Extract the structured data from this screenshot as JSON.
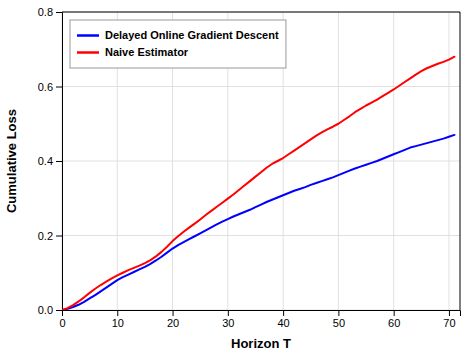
{
  "chart_data": {
    "type": "line",
    "xlabel": "Horizon T",
    "ylabel": "Cumulative Loss",
    "x": [
      0,
      1,
      2,
      3,
      4,
      5,
      6,
      7,
      8,
      9,
      10,
      11,
      12,
      13,
      14,
      15,
      16,
      17,
      18,
      19,
      20,
      21,
      22,
      23,
      24,
      25,
      26,
      27,
      28,
      29,
      30,
      31,
      32,
      33,
      34,
      35,
      36,
      37,
      38,
      39,
      40,
      41,
      42,
      43,
      44,
      45,
      46,
      47,
      48,
      49,
      50,
      51,
      52,
      53,
      54,
      55,
      56,
      57,
      58,
      59,
      60,
      61,
      62,
      63,
      64,
      65,
      66,
      67,
      68,
      69,
      70,
      71
    ],
    "series": [
      {
        "name": "Delayed Online Gradient Descent",
        "color": "#0000FF",
        "values": [
          0.0,
          0.003,
          0.008,
          0.014,
          0.022,
          0.031,
          0.04,
          0.05,
          0.06,
          0.07,
          0.08,
          0.088,
          0.095,
          0.102,
          0.109,
          0.116,
          0.124,
          0.133,
          0.143,
          0.154,
          0.165,
          0.174,
          0.182,
          0.19,
          0.198,
          0.206,
          0.214,
          0.222,
          0.23,
          0.237,
          0.244,
          0.251,
          0.257,
          0.263,
          0.269,
          0.276,
          0.283,
          0.29,
          0.296,
          0.302,
          0.308,
          0.314,
          0.32,
          0.325,
          0.33,
          0.336,
          0.341,
          0.346,
          0.351,
          0.356,
          0.362,
          0.368,
          0.374,
          0.38,
          0.385,
          0.39,
          0.395,
          0.4,
          0.406,
          0.412,
          0.418,
          0.424,
          0.43,
          0.436,
          0.44,
          0.444,
          0.448,
          0.452,
          0.456,
          0.46,
          0.465,
          0.47
        ]
      },
      {
        "name": "Naive Estimator",
        "color": "#FF0000",
        "values": [
          0.0,
          0.005,
          0.013,
          0.023,
          0.034,
          0.046,
          0.057,
          0.067,
          0.076,
          0.085,
          0.093,
          0.1,
          0.107,
          0.113,
          0.119,
          0.126,
          0.134,
          0.144,
          0.156,
          0.17,
          0.185,
          0.198,
          0.21,
          0.221,
          0.232,
          0.243,
          0.255,
          0.266,
          0.277,
          0.288,
          0.299,
          0.31,
          0.322,
          0.334,
          0.346,
          0.358,
          0.37,
          0.382,
          0.392,
          0.4,
          0.408,
          0.418,
          0.428,
          0.438,
          0.448,
          0.458,
          0.468,
          0.477,
          0.485,
          0.492,
          0.5,
          0.51,
          0.52,
          0.531,
          0.54,
          0.549,
          0.557,
          0.565,
          0.574,
          0.583,
          0.592,
          0.602,
          0.612,
          0.622,
          0.632,
          0.641,
          0.649,
          0.655,
          0.661,
          0.666,
          0.672,
          0.68
        ]
      }
    ],
    "xlim": [
      0,
      72
    ],
    "ylim": [
      0,
      0.8
    ],
    "xticks": [
      0,
      10,
      20,
      30,
      40,
      50,
      60,
      70
    ],
    "yticks": [
      {
        "value": 0,
        "label": "0.0"
      },
      0.2,
      0.4,
      0.6,
      0.8
    ],
    "grid": true,
    "legend": "upper left"
  }
}
